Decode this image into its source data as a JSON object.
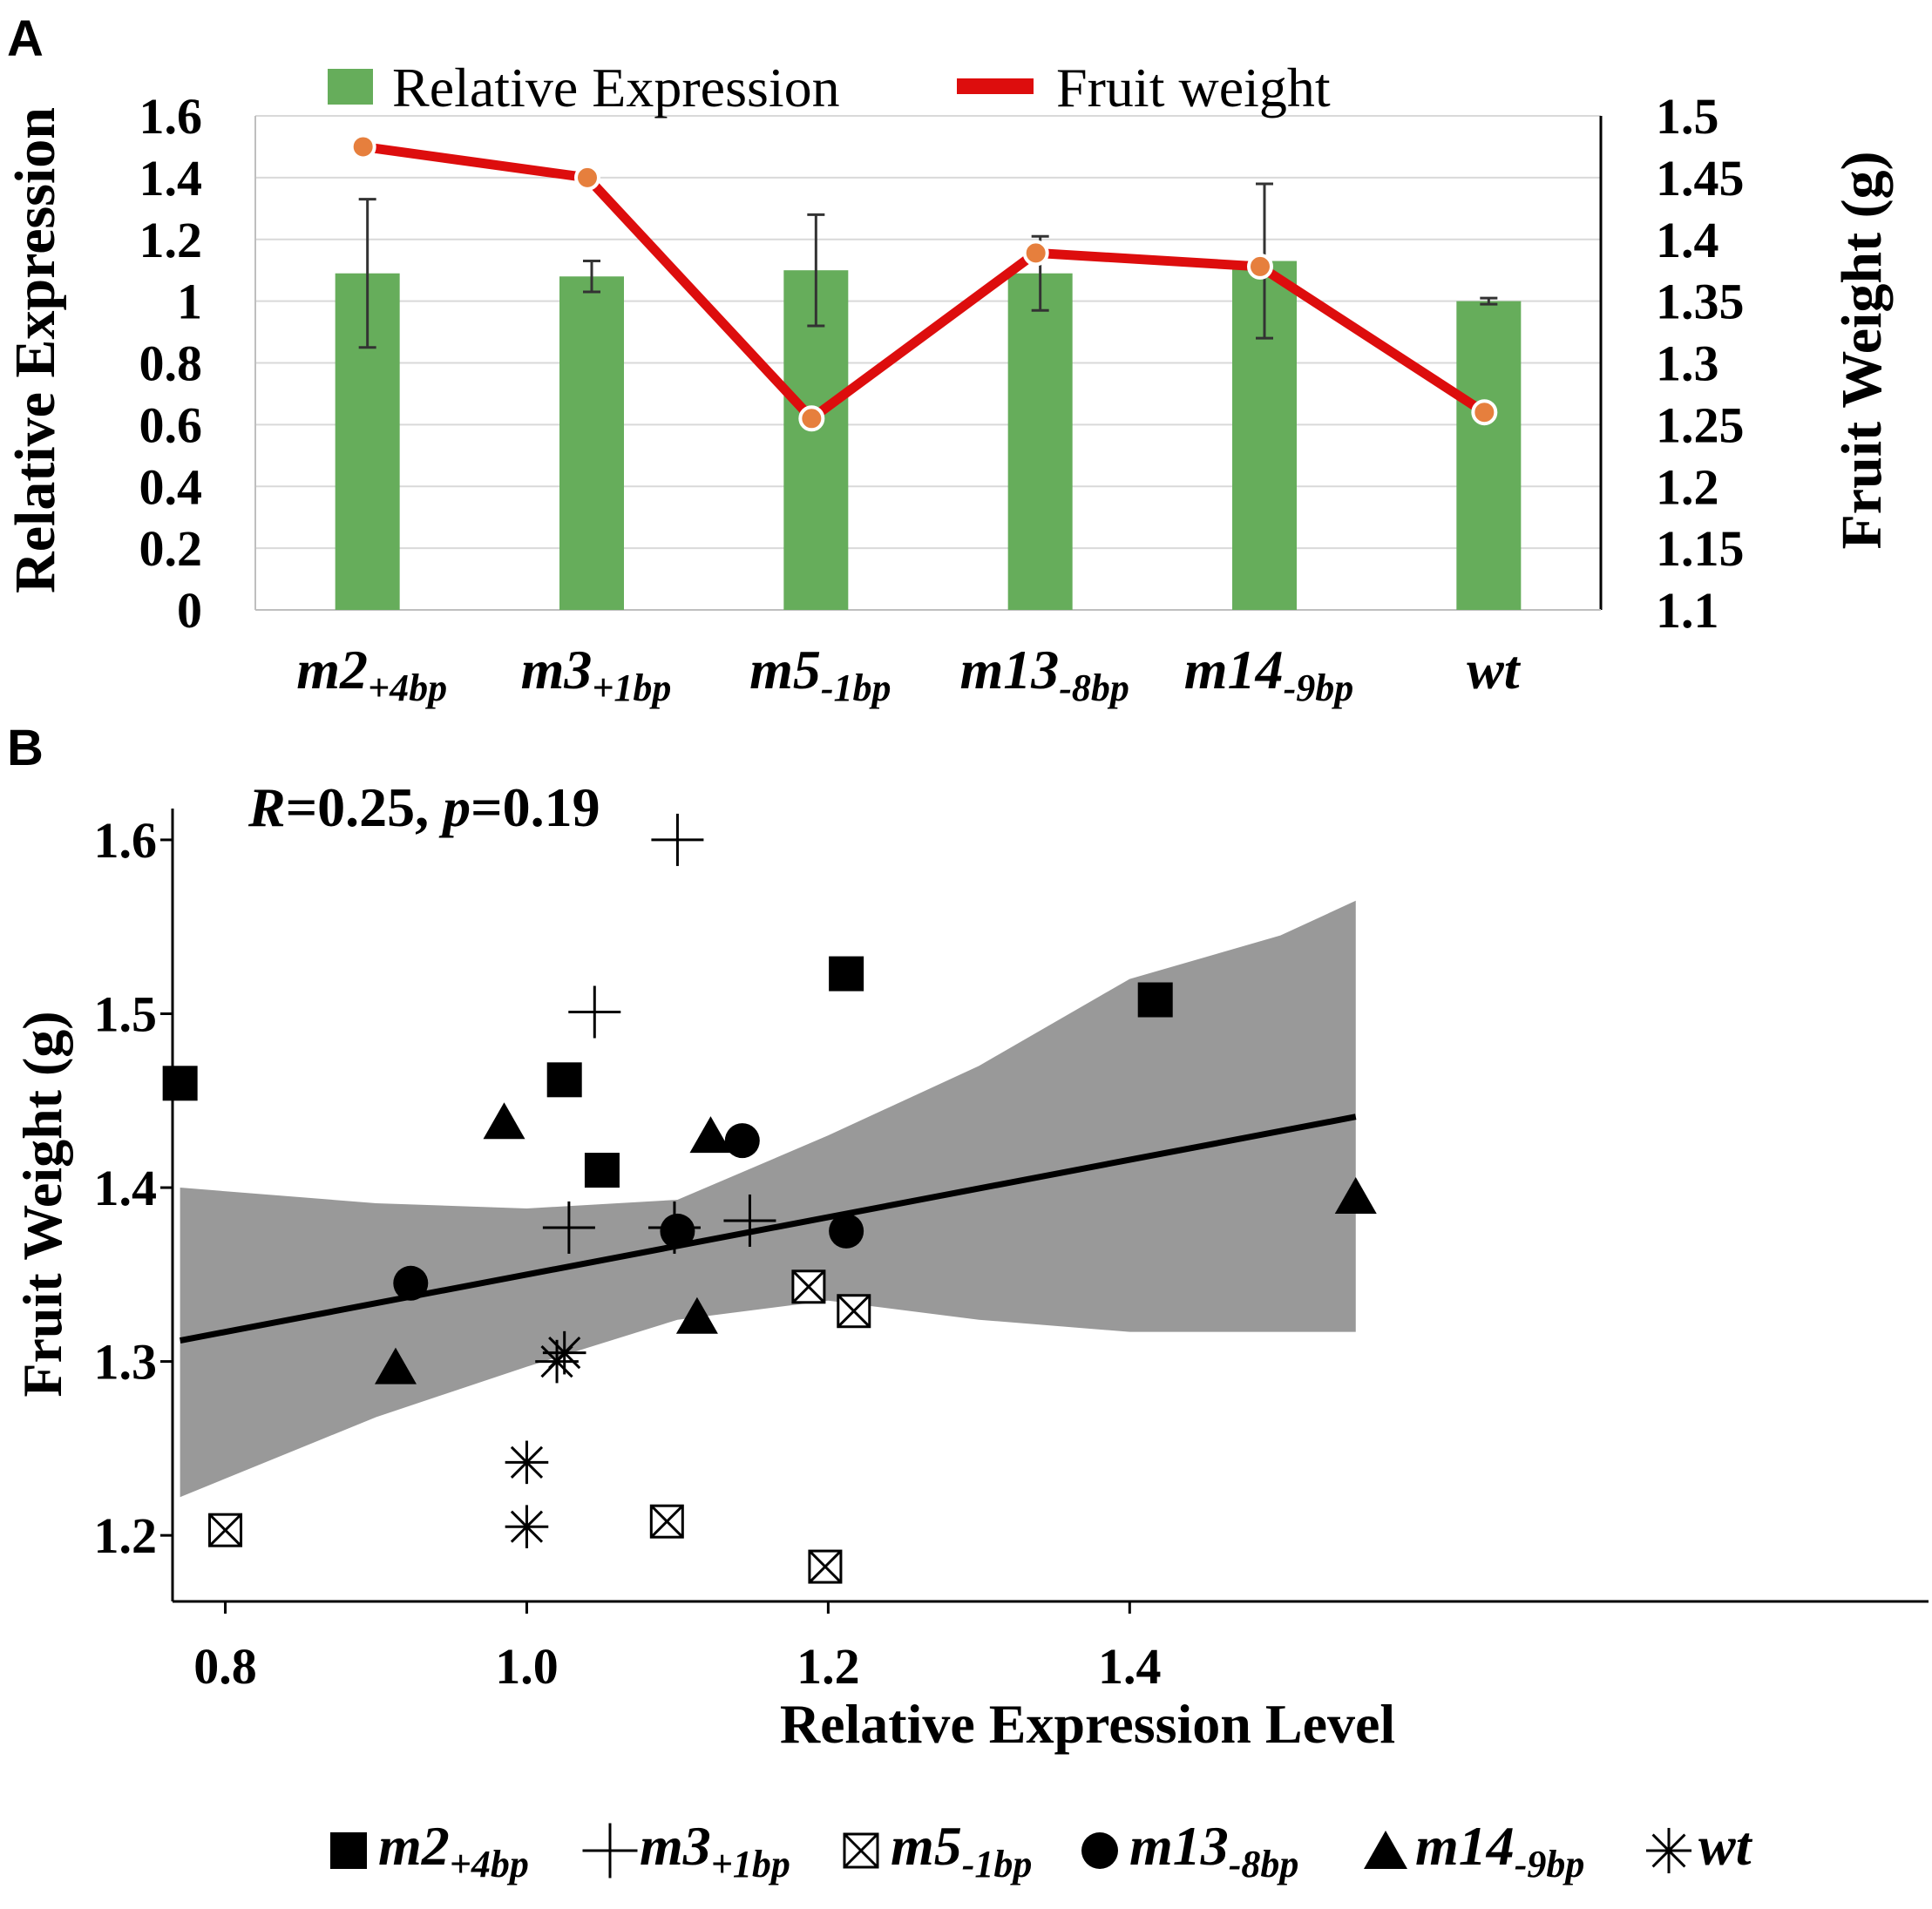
{
  "colors": {
    "bar": "#66ad5b",
    "line": "#dd0d0d",
    "dot": "#e67f3d",
    "dot_stroke": "#ffffff",
    "grid": "#d9d9d9",
    "band": "#999999",
    "ink": "#000000",
    "err": "#333333"
  },
  "panel_a": {
    "label": "A"
  },
  "panel_b": {
    "label": "B"
  },
  "chart_data": [
    {
      "type": "bar",
      "title": "",
      "legend": [
        {
          "text": "Relative Expression"
        },
        {
          "text": "Fruit weight"
        }
      ],
      "ylabel": "Relative Expression",
      "y2label": "Fruit Weight (g)",
      "ylim": [
        0,
        1.6
      ],
      "y2lim": [
        1.1,
        1.5
      ],
      "yticks": [
        "0",
        "0.2",
        "0.4",
        "0.6",
        "0.8",
        "1",
        "1.2",
        "1.4",
        "1.6"
      ],
      "y2ticks": [
        "1.1",
        "1.15",
        "1.2",
        "1.25",
        "1.3",
        "1.35",
        "1.4",
        "1.45",
        "1.5"
      ],
      "categories": [
        {
          "base": "m2",
          "sub": "+4bp"
        },
        {
          "base": "m3",
          "sub": "+1bp"
        },
        {
          "base": "m5",
          "sub": "-1bp"
        },
        {
          "base": "m13",
          "sub": "-8bp"
        },
        {
          "base": "m14",
          "sub": "-9bp"
        },
        {
          "base": "wt",
          "sub": ""
        }
      ],
      "series": [
        {
          "name": "Relative Expression",
          "type": "bar",
          "axis": "left",
          "values": [
            1.09,
            1.08,
            1.1,
            1.09,
            1.13,
            1.0
          ],
          "errors": [
            0.24,
            0.05,
            0.18,
            0.12,
            0.25,
            0.01
          ]
        },
        {
          "name": "Fruit weight",
          "type": "line",
          "axis": "right",
          "values": [
            1.475,
            1.45,
            1.255,
            1.389,
            1.378,
            1.26
          ]
        }
      ]
    },
    {
      "type": "scatter",
      "annotation": {
        "r_label": "R",
        "r_text": "=0.25, ",
        "p_label": "p",
        "p_text": "=0.19"
      },
      "xlabel": "Relative Expression Level",
      "ylabel": "Fruit Weight (g)",
      "xlim": [
        0.765,
        1.93
      ],
      "ylim": [
        1.162,
        1.618
      ],
      "xticks": [
        "0.8",
        "1.0",
        "1.2",
        "1.4"
      ],
      "yticks": [
        "1.2",
        "1.3",
        "1.4",
        "1.5",
        "1.6"
      ],
      "regression": {
        "slope": 0.165,
        "intercept": 1.185,
        "x_range": [
          0.77,
          1.55
        ],
        "ci": [
          [
            0.77,
            1.222,
            1.4
          ],
          [
            0.9,
            1.268,
            1.391
          ],
          [
            1.0,
            1.297,
            1.388
          ],
          [
            1.1,
            1.324,
            1.393
          ],
          [
            1.2,
            1.335,
            1.43
          ],
          [
            1.3,
            1.324,
            1.47
          ],
          [
            1.4,
            1.317,
            1.52
          ],
          [
            1.5,
            1.317,
            1.545
          ],
          [
            1.55,
            1.317,
            1.565
          ]
        ]
      },
      "series": [
        {
          "name": "m2",
          "sub": "+4bp",
          "marker": "square",
          "points": [
            [
              0.77,
              1.46
            ],
            [
              1.025,
              1.462
            ],
            [
              1.05,
              1.41
            ],
            [
              1.212,
              1.523
            ],
            [
              1.417,
              1.508
            ]
          ]
        },
        {
          "name": "m3",
          "sub": "+1bp",
          "marker": "plus",
          "points": [
            [
              1.1,
              1.6
            ],
            [
              1.045,
              1.501
            ],
            [
              1.028,
              1.377
            ],
            [
              1.098,
              1.377
            ],
            [
              1.148,
              1.381
            ]
          ]
        },
        {
          "name": "m5",
          "sub": "-1bp",
          "marker": "boxx",
          "points": [
            [
              0.8,
              1.203
            ],
            [
              1.093,
              1.208
            ],
            [
              1.198,
              1.182
            ],
            [
              1.187,
              1.343
            ],
            [
              1.217,
              1.329
            ]
          ]
        },
        {
          "name": "m13",
          "sub": "-8bp",
          "marker": "circle",
          "points": [
            [
              0.923,
              1.345
            ],
            [
              1.1,
              1.375
            ],
            [
              1.143,
              1.427
            ],
            [
              1.212,
              1.375
            ]
          ]
        },
        {
          "name": "m14",
          "sub": "-9bp",
          "marker": "triangle",
          "points": [
            [
              0.913,
              1.297
            ],
            [
              0.985,
              1.438
            ],
            [
              1.122,
              1.43
            ],
            [
              1.113,
              1.326
            ],
            [
              1.55,
              1.395
            ]
          ]
        },
        {
          "name": "wt",
          "sub": "",
          "marker": "star",
          "points": [
            [
              1.02,
              1.3
            ],
            [
              1.025,
              1.305
            ],
            [
              1.0,
              1.242
            ],
            [
              1.0,
              1.205
            ]
          ]
        }
      ]
    }
  ]
}
